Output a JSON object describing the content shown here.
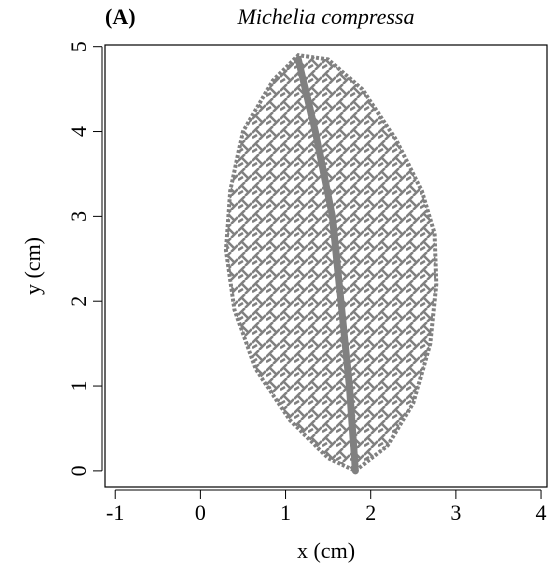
{
  "chart_data": {
    "type": "area",
    "panel": "(A)",
    "title": "Michelia compressa",
    "xlabel": "x (cm)",
    "ylabel": "y (cm)",
    "xlim": [
      -1.12,
      4.07
    ],
    "ylim": [
      -0.19,
      5.02
    ],
    "xticks": [
      -1,
      0,
      1,
      2,
      3,
      4
    ],
    "yticks": [
      0,
      1,
      2,
      3,
      4,
      5
    ],
    "series": [
      {
        "color": "#808080",
        "x": [
          1.82,
          2.2,
          2.5,
          2.7,
          2.77,
          2.75,
          2.6,
          2.3,
          1.9,
          1.5,
          1.15,
          0.85,
          0.5,
          0.35,
          0.3,
          0.4,
          0.65,
          1.05,
          1.5,
          1.82
        ],
        "y": [
          0.0,
          0.3,
          0.8,
          1.5,
          2.2,
          2.8,
          3.3,
          3.9,
          4.5,
          4.85,
          4.9,
          4.6,
          4.0,
          3.3,
          2.6,
          1.9,
          1.2,
          0.6,
          0.15,
          0.0
        ]
      },
      {
        "color": "#808080",
        "x": [
          1.82,
          1.75,
          1.65,
          1.55,
          1.35,
          1.15
        ],
        "y": [
          0.0,
          1.0,
          2.0,
          3.0,
          4.0,
          4.85
        ]
      }
    ]
  }
}
